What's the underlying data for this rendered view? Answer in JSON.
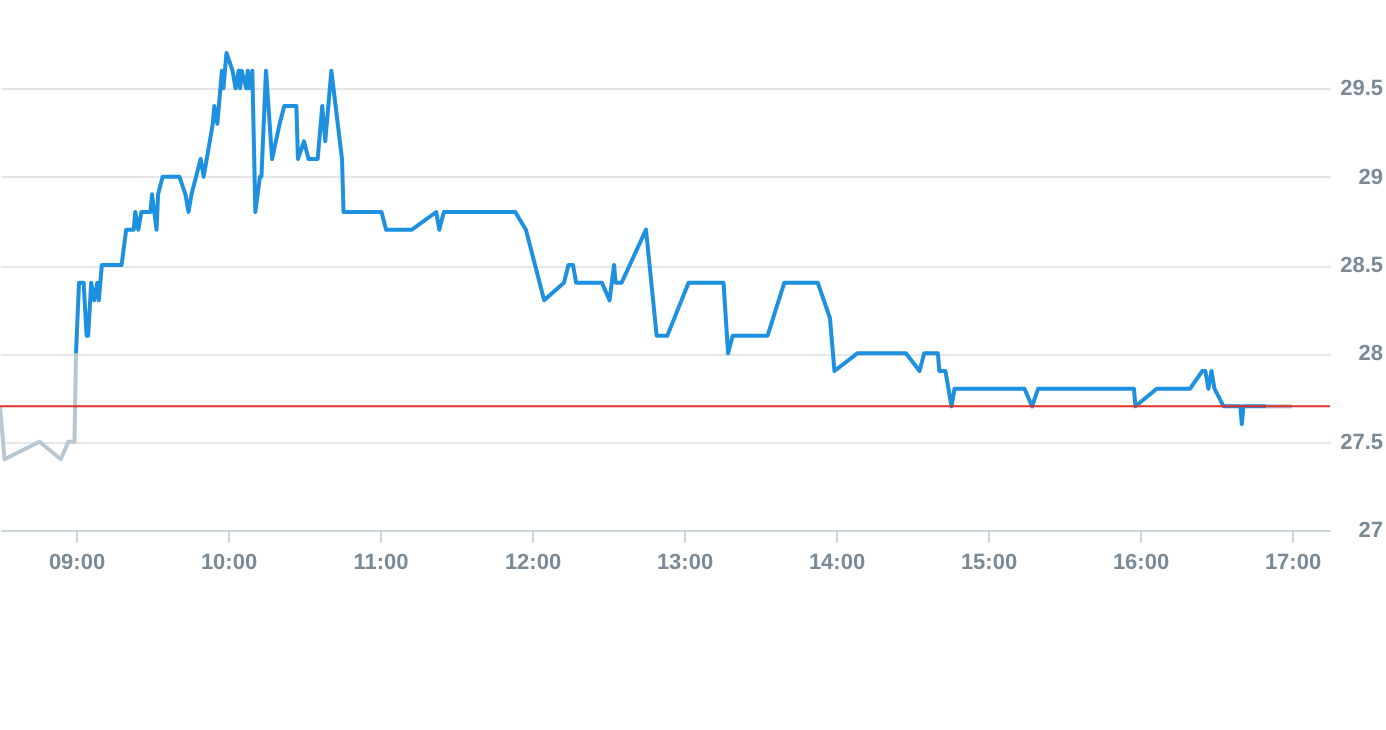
{
  "chart_data": {
    "type": "line",
    "xlim": [
      8.5,
      17.25
    ],
    "xticks": [
      {
        "value": 9,
        "label": "09:00"
      },
      {
        "value": 10,
        "label": "10:00"
      },
      {
        "value": 11,
        "label": "11:00"
      },
      {
        "value": 12,
        "label": "12:00"
      },
      {
        "value": 13,
        "label": "13:00"
      },
      {
        "value": 14,
        "label": "14:00"
      },
      {
        "value": 15,
        "label": "15:00"
      },
      {
        "value": 16,
        "label": "16:00"
      },
      {
        "value": 17,
        "label": "17:00"
      }
    ],
    "ylim": [
      27,
      30
    ],
    "yticks": [
      27,
      27.5,
      28,
      28.5,
      29,
      29.5
    ],
    "grid": "y",
    "marker": "none",
    "line_style": "solid",
    "ref_lines": [
      {
        "axis": "y",
        "value": 27.7,
        "color": "#e0312b"
      }
    ],
    "series": [
      {
        "color": "#b8c7d1",
        "x": [
          8.5,
          8.53,
          8.76,
          8.9,
          8.95,
          8.99,
          9.0
        ],
        "values": [
          27.7,
          27.4,
          27.5,
          27.4,
          27.5,
          27.5,
          28.0
        ]
      },
      {
        "color": "#1e90e0",
        "x": [
          9.0,
          9.02,
          9.05,
          9.07,
          9.08,
          9.1,
          9.12,
          9.14,
          9.15,
          9.17,
          9.3,
          9.33,
          9.38,
          9.39,
          9.41,
          9.43,
          9.49,
          9.5,
          9.53,
          9.54,
          9.57,
          9.68,
          9.72,
          9.74,
          9.76,
          9.82,
          9.84,
          9.86,
          9.9,
          9.91,
          9.93,
          9.96,
          9.97,
          9.99,
          10.03,
          10.05,
          10.07,
          10.08,
          10.09,
          10.12,
          10.13,
          10.14,
          10.16,
          10.18,
          10.21,
          10.22,
          10.25,
          10.29,
          10.34,
          10.37,
          10.45,
          10.46,
          10.5,
          10.53,
          10.59,
          10.62,
          10.64,
          10.68,
          10.75,
          10.76,
          11.01,
          11.04,
          11.21,
          11.37,
          11.39,
          11.42,
          11.89,
          11.96,
          12.08,
          12.21,
          12.24,
          12.27,
          12.29,
          12.46,
          12.51,
          12.54,
          12.55,
          12.59,
          12.75,
          12.82,
          12.89,
          13.03,
          13.26,
          13.29,
          13.32,
          13.55,
          13.66,
          13.88,
          13.96,
          13.99,
          14.14,
          14.46,
          14.55,
          14.58,
          14.67,
          14.68,
          14.72,
          14.76,
          14.78,
          15.24,
          15.29,
          15.33,
          15.96,
          15.97,
          16.11,
          16.33,
          16.41,
          16.43,
          16.45,
          16.47,
          16.49,
          16.55,
          16.66,
          16.67,
          16.68,
          16.83
        ],
        "values": [
          28.0,
          28.4,
          28.4,
          28.1,
          28.1,
          28.4,
          28.3,
          28.4,
          28.3,
          28.5,
          28.5,
          28.7,
          28.7,
          28.8,
          28.7,
          28.8,
          28.8,
          28.9,
          28.7,
          28.9,
          29.0,
          29.0,
          28.9,
          28.8,
          28.9,
          29.1,
          29.0,
          29.1,
          29.3,
          29.4,
          29.3,
          29.6,
          29.5,
          29.7,
          29.6,
          29.5,
          29.6,
          29.5,
          29.6,
          29.5,
          29.6,
          29.5,
          29.6,
          28.8,
          29.0,
          29.0,
          29.6,
          29.1,
          29.3,
          29.4,
          29.4,
          29.1,
          29.2,
          29.1,
          29.1,
          29.4,
          29.2,
          29.6,
          29.1,
          28.8,
          28.8,
          28.7,
          28.7,
          28.8,
          28.7,
          28.8,
          28.8,
          28.7,
          28.3,
          28.4,
          28.5,
          28.5,
          28.4,
          28.4,
          28.3,
          28.5,
          28.4,
          28.4,
          28.7,
          28.1,
          28.1,
          28.4,
          28.4,
          28.0,
          28.1,
          28.1,
          28.4,
          28.4,
          28.2,
          27.9,
          28.0,
          28.0,
          27.9,
          28.0,
          28.0,
          27.9,
          27.9,
          27.7,
          27.8,
          27.8,
          27.7,
          27.8,
          27.8,
          27.7,
          27.8,
          27.8,
          27.9,
          27.9,
          27.8,
          27.9,
          27.8,
          27.7,
          27.7,
          27.6,
          27.7,
          27.7
        ]
      },
      {
        "color": "#a9c4dc",
        "x": [
          16.83,
          17.0
        ],
        "values": [
          27.7,
          27.7
        ]
      }
    ]
  }
}
